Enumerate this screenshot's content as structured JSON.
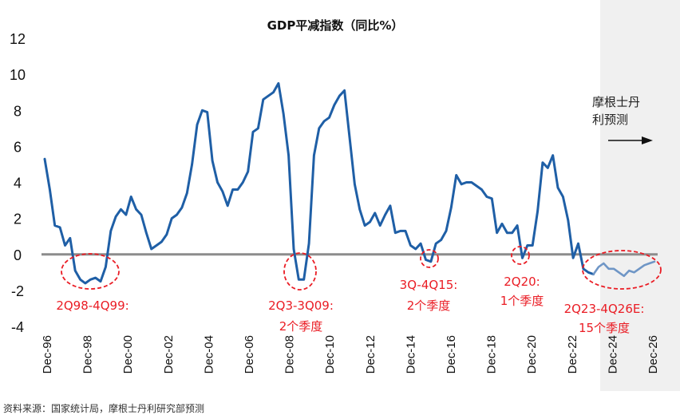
{
  "chart_data": {
    "type": "line",
    "title": "GDP平减指数（同比%）",
    "xlabel": "",
    "ylabel": "",
    "ylim": [
      -4,
      12
    ],
    "yticks": [
      "12",
      "10",
      "8",
      "6",
      "4",
      "2",
      "0",
      "-2",
      "-4"
    ],
    "xticks": [
      "Dec-96",
      "Dec-98",
      "Dec-00",
      "Dec-02",
      "Dec-04",
      "Dec-06",
      "Dec-08",
      "Dec-10",
      "Dec-12",
      "Dec-14",
      "Dec-16",
      "Dec-18",
      "Dec-20",
      "Dec-22",
      "Dec-24",
      "Dec-26"
    ],
    "series": [
      {
        "name": "GDP平减指数（同比%）",
        "color": "#1f5fa6",
        "x": [
          1996.92,
          1997.17,
          1997.42,
          1997.67,
          1997.92,
          1998.17,
          1998.42,
          1998.67,
          1998.92,
          1999.17,
          1999.42,
          1999.67,
          1999.92,
          2000.17,
          2000.42,
          2000.67,
          2000.92,
          2001.17,
          2001.42,
          2001.67,
          2001.92,
          2002.17,
          2002.42,
          2002.67,
          2002.92,
          2003.17,
          2003.42,
          2003.67,
          2003.92,
          2004.17,
          2004.42,
          2004.67,
          2004.92,
          2005.17,
          2005.42,
          2005.67,
          2005.92,
          2006.17,
          2006.42,
          2006.67,
          2006.92,
          2007.17,
          2007.42,
          2007.67,
          2007.92,
          2008.17,
          2008.42,
          2008.67,
          2008.92,
          2009.17,
          2009.42,
          2009.67,
          2009.92,
          2010.17,
          2010.42,
          2010.67,
          2010.92,
          2011.17,
          2011.42,
          2011.67,
          2011.92,
          2012.17,
          2012.42,
          2012.67,
          2012.92,
          2013.17,
          2013.42,
          2013.67,
          2013.92,
          2014.17,
          2014.42,
          2014.67,
          2014.92,
          2015.17,
          2015.42,
          2015.67,
          2015.92,
          2016.17,
          2016.42,
          2016.67,
          2016.92,
          2017.17,
          2017.42,
          2017.67,
          2017.92,
          2018.17,
          2018.42,
          2018.67,
          2018.92,
          2019.17,
          2019.42,
          2019.67,
          2019.92,
          2020.17,
          2020.42,
          2020.67,
          2020.92,
          2021.17,
          2021.42,
          2021.67,
          2021.92,
          2022.17,
          2022.42,
          2022.67,
          2022.92,
          2023.17,
          2023.42,
          2023.67,
          2023.92
        ],
        "values": [
          5.3,
          3.6,
          1.6,
          1.5,
          0.5,
          0.9,
          -0.9,
          -1.4,
          -1.6,
          -1.4,
          -1.3,
          -1.5,
          -0.7,
          1.3,
          2.1,
          2.5,
          2.2,
          3.2,
          2.5,
          2.2,
          1.2,
          0.3,
          0.5,
          0.7,
          1.1,
          2.0,
          2.2,
          2.6,
          3.4,
          5.0,
          7.2,
          8.0,
          7.9,
          5.2,
          4.0,
          3.5,
          2.7,
          3.6,
          3.6,
          4.0,
          4.6,
          6.8,
          7.0,
          8.6,
          8.8,
          9.0,
          9.5,
          7.8,
          5.5,
          0.3,
          -1.4,
          -1.4,
          0.6,
          5.5,
          7.0,
          7.4,
          7.6,
          8.3,
          8.8,
          9.1,
          6.5,
          3.9,
          2.5,
          1.6,
          1.8,
          2.3,
          1.6,
          2.2,
          2.7,
          1.2,
          1.3,
          1.3,
          0.5,
          0.3,
          0.6,
          -0.3,
          -0.4,
          0.6,
          0.8,
          1.3,
          2.6,
          4.4,
          3.9,
          4.0,
          4.0,
          3.8,
          3.6,
          3.2,
          3.1,
          1.2,
          1.7,
          1.2,
          1.2,
          1.6,
          -0.2,
          0.5,
          0.5,
          2.4,
          5.1,
          4.8,
          5.5,
          3.7,
          3.2,
          1.9,
          -0.2,
          0.6,
          -0.8,
          -1.0,
          -1.1
        ]
      },
      {
        "name": "摩根士丹利预测",
        "color": "#6f96c6",
        "x": [
          2023.92,
          2024.17,
          2024.42,
          2024.67,
          2024.92,
          2025.17,
          2025.42,
          2025.67,
          2025.92,
          2026.17,
          2026.42,
          2026.67,
          2026.92
        ],
        "values": [
          -1.1,
          -0.7,
          -0.5,
          -0.8,
          -0.8,
          -1.0,
          -1.2,
          -0.9,
          -1.0,
          -0.8,
          -0.6,
          -0.5,
          -0.4
        ]
      }
    ],
    "annotations": [
      {
        "label": "2Q98-4Q99:",
        "cx": 1998.5,
        "cy": -1.0
      },
      {
        "label": "2Q3-3Q09:",
        "sub": "2个季度",
        "cx": 2008.9,
        "cy": -1.0
      },
      {
        "label": "3Q-4Q15:",
        "sub": "2个季度",
        "cx": 2015.0,
        "cy": -0.25
      },
      {
        "label": "2Q20:",
        "sub": "1个季度",
        "cx": 2020.1,
        "cy": -0.1
      },
      {
        "label": "2Q23-4Q26E:",
        "sub": "15个季度",
        "cx": 2025.2,
        "cy": -0.85
      }
    ],
    "forecast_label": [
      "摩根士丹",
      "利预测"
    ],
    "forecast_start": 2023.92
  },
  "source_text": "资料来源：国家统计局，摩根士丹利研究部预测"
}
